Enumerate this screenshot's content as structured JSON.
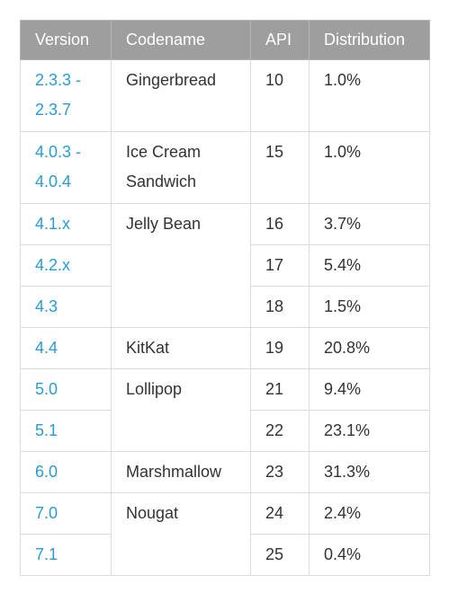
{
  "table": {
    "headers": {
      "version": "Version",
      "codename": "Codename",
      "api": "API",
      "distribution": "Distribution"
    },
    "rows": [
      {
        "version": "2.3.3 - 2.3.7",
        "codename": "Gingerbread",
        "api": "10",
        "distribution": "1.0%"
      },
      {
        "version": "4.0.3 - 4.0.4",
        "codename": "Ice Cream Sandwich",
        "api": "15",
        "distribution": "1.0%"
      },
      {
        "version": "4.1.x",
        "codename": "Jelly Bean",
        "api": "16",
        "distribution": "3.7%"
      },
      {
        "version": "4.2.x",
        "api": "17",
        "distribution": "5.4%"
      },
      {
        "version": "4.3",
        "api": "18",
        "distribution": "1.5%"
      },
      {
        "version": "4.4",
        "codename": "KitKat",
        "api": "19",
        "distribution": "20.8%"
      },
      {
        "version": "5.0",
        "codename": "Lollipop",
        "api": "21",
        "distribution": "9.4%"
      },
      {
        "version": "5.1",
        "api": "22",
        "distribution": "23.1%"
      },
      {
        "version": "6.0",
        "codename": "Marshmallow",
        "api": "23",
        "distribution": "31.3%"
      },
      {
        "version": "7.0",
        "codename": "Nougat",
        "api": "24",
        "distribution": "2.4%"
      },
      {
        "version": "7.1",
        "api": "25",
        "distribution": "0.4%"
      }
    ]
  },
  "colors": {
    "header_bg": "#9e9e9e",
    "version_link": "#2a9bd6",
    "border": "#dadada"
  }
}
